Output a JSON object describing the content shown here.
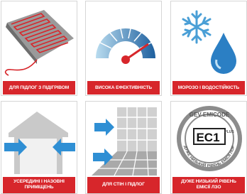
{
  "tiles": [
    {
      "label": "ДЛЯ ПІДЛОГ З ПІДІГРІВОМ"
    },
    {
      "label": "ВИСОКА ЕФЕКТИВНІСТЬ"
    },
    {
      "label": "МОРОЗО І ВОДОСТІЙКІСТЬ"
    },
    {
      "label": "УСЕРЕДИНІ І НАЗОВНІ ПРИМІЩЕНЬ"
    },
    {
      "label": "ДЛЯ СТІН І ПІДЛОГ"
    },
    {
      "label": "ДУЖЕ НИЗЬКИЙ РІВЕНЬ ЕМІСІЇ ЛЗО"
    }
  ],
  "badge": {
    "brand": "GEV-EMICODE",
    "class": "EC1",
    "plus": "PLUS",
    "arc_text": "ДУЖЕ НИЗЬКИЙ РІВЕНЬ ЕМІСІЇ ЛОР"
  }
}
